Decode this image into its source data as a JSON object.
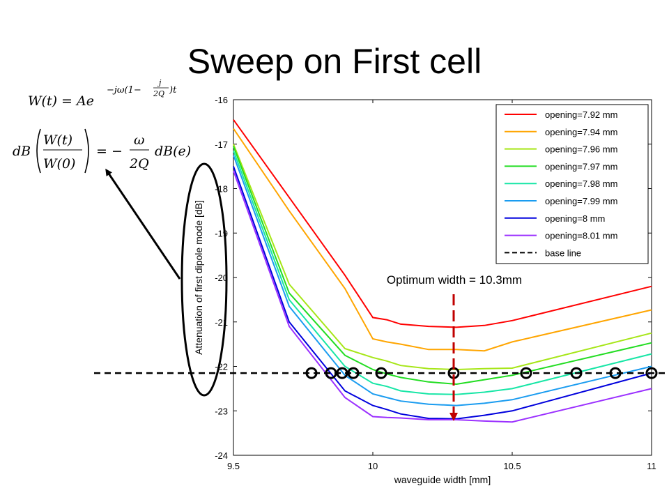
{
  "slide": {
    "title": "Sweep on First cell"
  },
  "equations": {
    "line1": {
      "lhs": "W(t) = Ae",
      "exponent_prefix": "−jω(1−",
      "exponent_frac_num": "j",
      "exponent_frac_den": "2Q",
      "exponent_suffix": ")t"
    },
    "line2": {
      "db": "dB",
      "frac_num": "W(t)",
      "frac_den": "W(0)",
      "equals": "= −",
      "omega": "ω",
      "two_q": "2Q",
      "rhs": "dB(e)"
    }
  },
  "annotation": {
    "optimum_label": "Optimum width = 10.3mm",
    "optimum_x": 10.29,
    "arrow_color": "#c00000"
  },
  "chart_data": {
    "type": "line",
    "xlabel": "waveguide width [mm]",
    "ylabel": "Attenuation of first dipole mode [dB]",
    "xlim": [
      9.5,
      11
    ],
    "ylim": [
      -24,
      -16
    ],
    "xticks": [
      "9.5",
      "10",
      "10.5",
      "11"
    ],
    "yticks": [
      "-16",
      "-17",
      "-18",
      "-19",
      "-20",
      "-21",
      "-22",
      "-23",
      "-24"
    ],
    "grid": false,
    "legend_position": "top-right",
    "x": [
      9.5,
      9.7,
      9.9,
      10.0,
      10.05,
      10.1,
      10.2,
      10.3,
      10.4,
      10.5,
      11.0
    ],
    "series": [
      {
        "name": "opening=7.92 mm",
        "color": "#ff0000",
        "values": [
          -16.45,
          -18.2,
          -19.95,
          -20.9,
          -20.95,
          -21.05,
          -21.1,
          -21.12,
          -21.08,
          -20.97,
          -20.2
        ]
      },
      {
        "name": "opening=7.94 mm",
        "color": "#ffa500",
        "values": [
          -16.65,
          -18.5,
          -20.25,
          -21.38,
          -21.45,
          -21.5,
          -21.62,
          -21.62,
          -21.65,
          -21.45,
          -20.73
        ]
      },
      {
        "name": "opening=7.96 mm",
        "color": "#a6e617",
        "values": [
          -17.0,
          -20.15,
          -21.6,
          -21.8,
          -21.88,
          -21.98,
          -22.05,
          -22.07,
          -22.05,
          -22.04,
          -21.25
        ]
      },
      {
        "name": "opening=7.97 mm",
        "color": "#22dd22",
        "values": [
          -17.05,
          -20.35,
          -21.75,
          -22.07,
          -22.17,
          -22.25,
          -22.35,
          -22.4,
          -22.3,
          -22.2,
          -21.47
        ]
      },
      {
        "name": "opening=7.98 mm",
        "color": "#17e6a6",
        "values": [
          -17.15,
          -20.5,
          -22.0,
          -22.38,
          -22.45,
          -22.55,
          -22.62,
          -22.63,
          -22.58,
          -22.5,
          -21.72
        ]
      },
      {
        "name": "opening=7.99 mm",
        "color": "#1a9cf0",
        "values": [
          -17.25,
          -20.65,
          -22.2,
          -22.62,
          -22.7,
          -22.78,
          -22.85,
          -22.88,
          -22.83,
          -22.75,
          -22.0
        ]
      },
      {
        "name": "opening=8 mm",
        "color": "#0000dd",
        "values": [
          -17.5,
          -21.0,
          -22.55,
          -22.88,
          -22.97,
          -23.07,
          -23.17,
          -23.18,
          -23.1,
          -23.0,
          -22.15
        ]
      },
      {
        "name": "opening=8.01 mm",
        "color": "#9b30ff",
        "values": [
          -17.6,
          -21.1,
          -22.7,
          -23.13,
          -23.15,
          -23.16,
          -23.2,
          -23.2,
          -23.23,
          -23.25,
          -22.5
        ]
      }
    ],
    "baseline": {
      "name": "base line",
      "color": "#000000",
      "y": -22.15,
      "x_start": 9.0
    },
    "intersections_x": [
      9.78,
      9.85,
      9.89,
      9.93,
      10.03,
      10.29,
      10.55,
      10.73,
      10.87,
      11.0
    ]
  }
}
